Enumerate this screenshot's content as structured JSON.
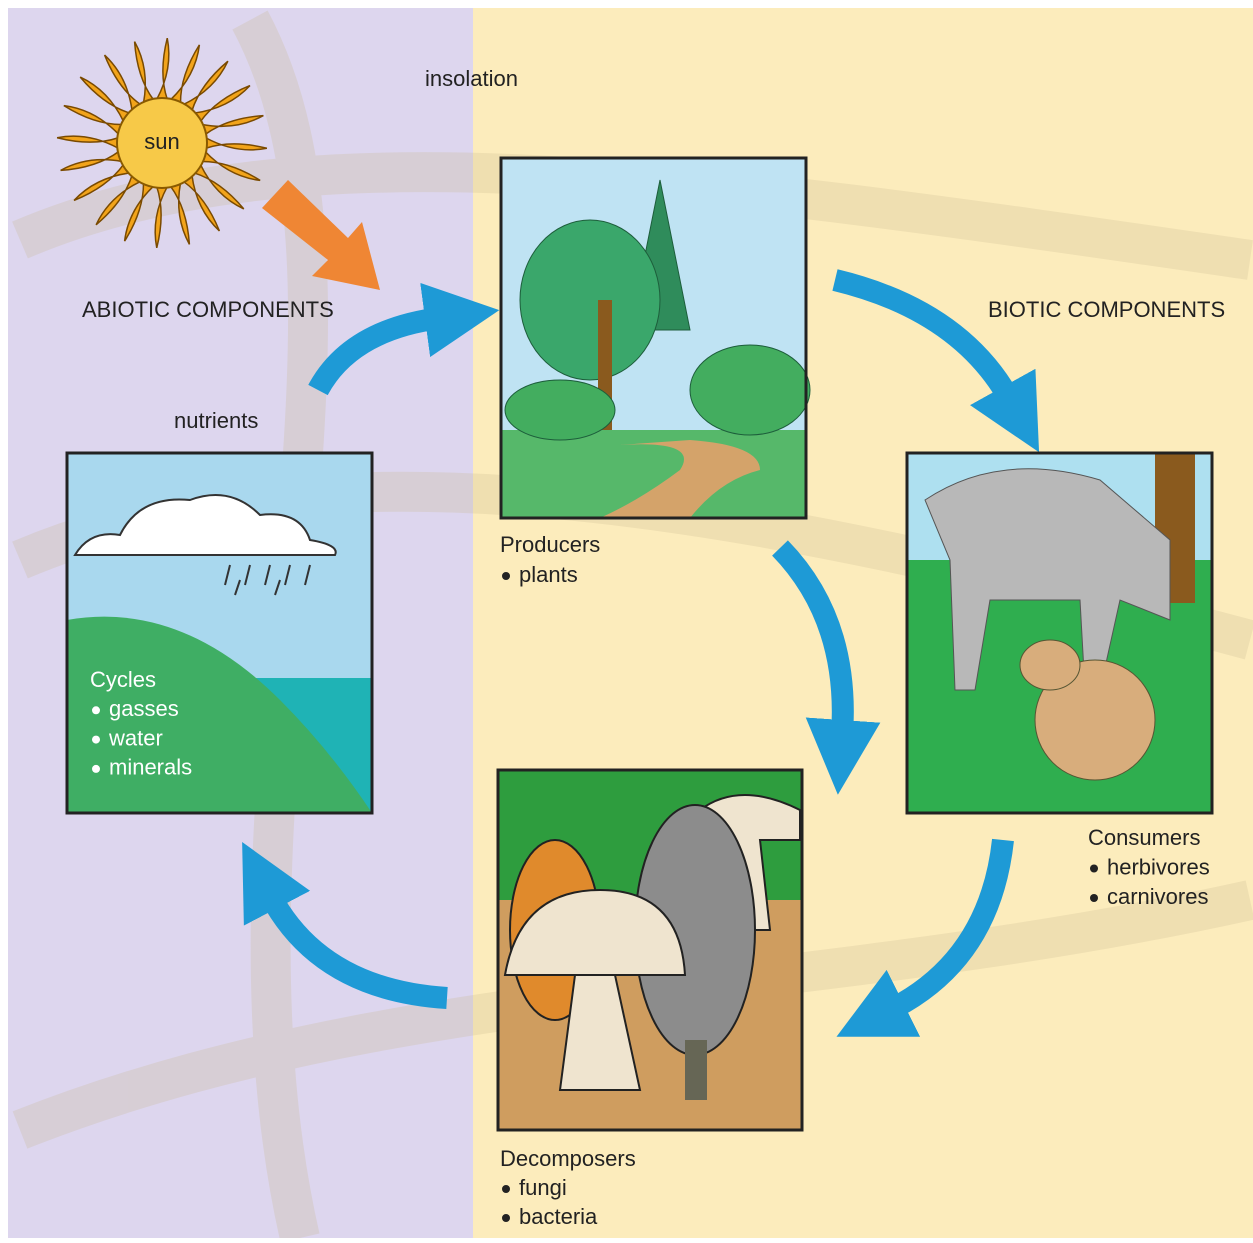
{
  "sun": "sun",
  "insolation": "insolation",
  "abiotic_title": "ABIOTIC COMPONENTS",
  "biotic_title": "BIOTIC COMPONENTS",
  "nutrients": "nutrients",
  "panels": [
    {
      "title": "Producers",
      "items": [
        "plants"
      ]
    },
    {
      "title": "Consumers",
      "items": [
        "herbivores",
        "carnivores"
      ]
    },
    {
      "title": "Decomposers",
      "items": [
        "fungi",
        "bacteria"
      ]
    },
    {
      "title": "Cycles",
      "items": [
        "gasses",
        "water",
        "minerals"
      ]
    }
  ]
}
